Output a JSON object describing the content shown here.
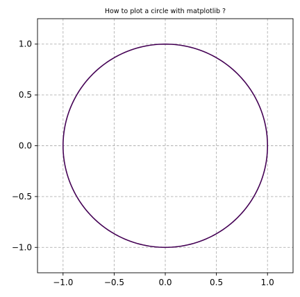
{
  "chart_data": {
    "type": "line",
    "title": "How to plot a circle with matplotlib ?",
    "xlabel": "",
    "ylabel": "",
    "xlim": [
      -1.25,
      1.25
    ],
    "ylim": [
      -1.25,
      1.25
    ],
    "xticks": [
      -1.0,
      -0.5,
      0.0,
      0.5,
      1.0
    ],
    "yticks": [
      -1.0,
      -0.5,
      0.0,
      0.5,
      1.0
    ],
    "xtick_labels": [
      "−1.0",
      "−0.5",
      "0.0",
      "0.5",
      "1.0"
    ],
    "ytick_labels": [
      "−1.0",
      "−0.5",
      "0.0",
      "0.5",
      "1.0"
    ],
    "grid": true,
    "grid_style": "dashed",
    "aspect": "equal",
    "series": [
      {
        "curve": "circle",
        "center": [
          0,
          0
        ],
        "radius": 1.0,
        "color": "#440154"
      }
    ]
  },
  "colors": {
    "line": "#440154",
    "grid": "#b0b0b0",
    "axes": "#000000",
    "background": "#ffffff"
  }
}
